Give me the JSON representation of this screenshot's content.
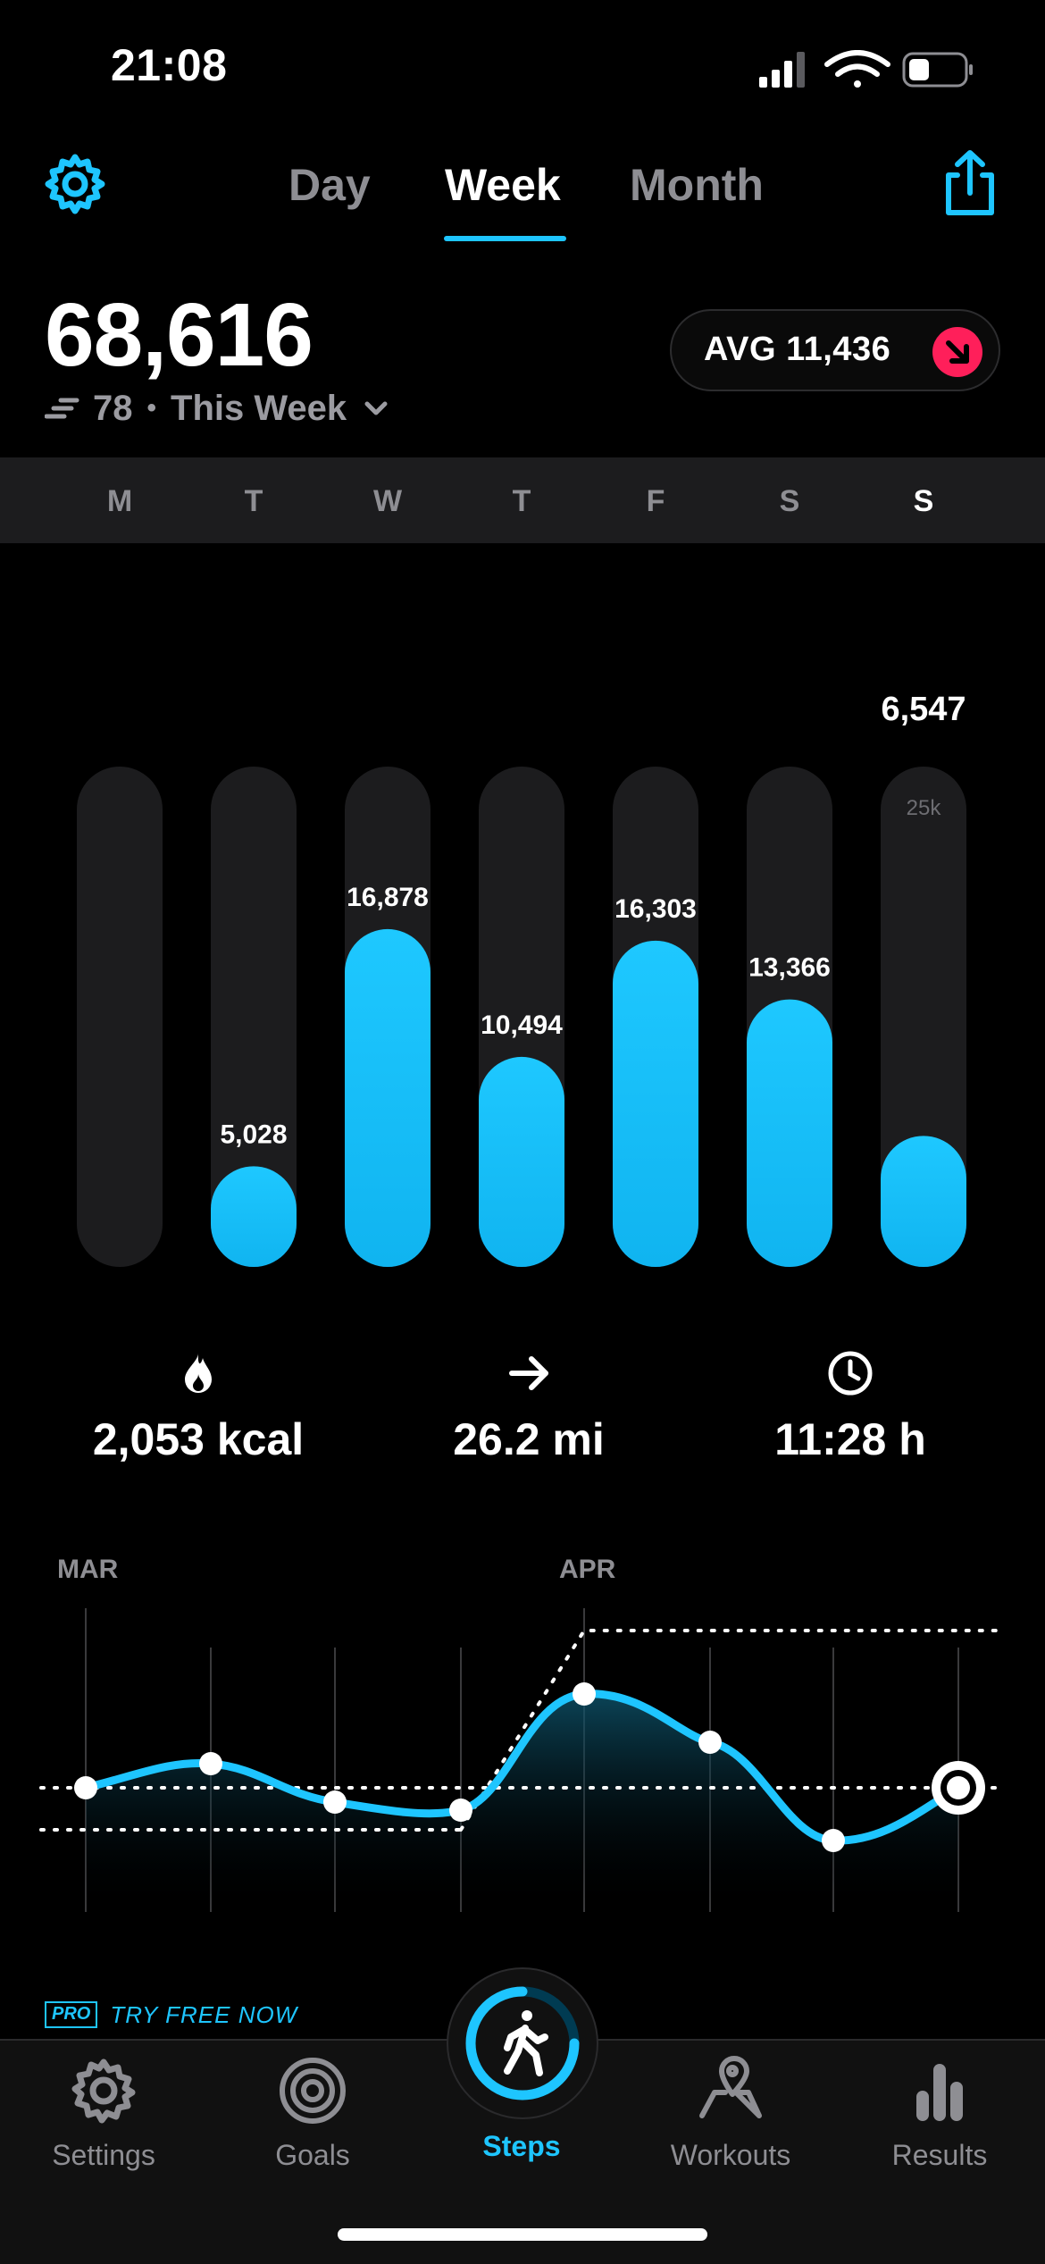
{
  "status_bar": {
    "time": "21:08"
  },
  "nav": {
    "segments": [
      "Day",
      "Week",
      "Month"
    ],
    "selected": "Week",
    "settings_icon": "gear-icon",
    "share_icon": "share-icon"
  },
  "summary": {
    "total_steps": "68,616",
    "delta": "78",
    "period": "This Week",
    "average_label": "AVG 11,436",
    "average_trend": "down"
  },
  "days": [
    "M",
    "T",
    "W",
    "T",
    "F",
    "S",
    "S"
  ],
  "active_day": 6,
  "chart_data": {
    "type": "bar",
    "categories": [
      "M",
      "T",
      "W",
      "T",
      "F",
      "S",
      "S"
    ],
    "values": [
      0,
      5028,
      16878,
      10494,
      16303,
      13366,
      6547
    ],
    "value_labels": [
      "",
      "5,028",
      "16,878",
      "10,494",
      "16,303",
      "13,366",
      "6,547"
    ],
    "scale_label": "25k",
    "ylim": [
      0,
      25000
    ],
    "colors": {
      "fill": "#1ec5ff",
      "track": "#1c1c1e"
    }
  },
  "stats": [
    {
      "icon": "flame-icon",
      "value": "2,053 kcal"
    },
    {
      "icon": "arrow-right-icon",
      "value": "26.2 mi"
    },
    {
      "icon": "clock-icon",
      "value": "11:28 h"
    }
  ],
  "trend": {
    "months": [
      "MAR",
      "APR"
    ]
  },
  "promo": {
    "badge": "PRO",
    "text": "TRY FREE NOW"
  },
  "tabbar": {
    "items": [
      {
        "label": "Settings",
        "icon": "gear-icon"
      },
      {
        "label": "Goals",
        "icon": "target-icon"
      },
      {
        "label": "Steps",
        "icon": "walking-person-icon"
      },
      {
        "label": "Workouts",
        "icon": "map-pin-icon"
      },
      {
        "label": "Results",
        "icon": "bar-chart-icon"
      }
    ],
    "active": "Steps"
  },
  "accent_color": "#1ec5ff",
  "alert_color": "#ff1f5a"
}
